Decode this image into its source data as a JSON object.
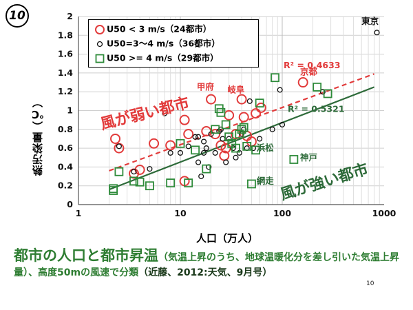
{
  "slide_number": "10",
  "chart_data": {
    "type": "scatter",
    "xscale": "log",
    "xlim": [
      1,
      1000
    ],
    "ylim": [
      0,
      2
    ],
    "xticks": [
      1,
      10,
      100,
      1000
    ],
    "yticks": [
      0,
      0.2,
      0.4,
      0.6,
      0.8,
      1,
      1.2,
      1.4,
      1.6,
      1.8,
      2
    ],
    "xlabel": "人口（万人）",
    "ylabel": "熱汚染量（℃）",
    "grid": true,
    "series": [
      {
        "name": "U50 < 3 m/s（24都市）",
        "marker": "circle-open-large",
        "color": "#e23b3b",
        "points": [
          [
            2.3,
            0.7
          ],
          [
            2.5,
            0.6
          ],
          [
            3.5,
            0.33
          ],
          [
            4,
            0.37
          ],
          [
            5.5,
            0.65
          ],
          [
            8,
            0.63
          ],
          [
            11,
            0.9
          ],
          [
            12,
            0.75
          ],
          [
            11,
            0.25
          ],
          [
            18,
            0.78
          ],
          [
            20,
            1.12
          ],
          [
            22,
            0.75
          ],
          [
            25,
            0.63
          ],
          [
            27,
            0.52
          ],
          [
            28,
            0.6
          ],
          [
            30,
            0.95
          ],
          [
            35,
            0.75
          ],
          [
            40,
            1.12
          ],
          [
            42,
            0.93
          ],
          [
            45,
            0.73
          ],
          [
            50,
            0.67
          ],
          [
            55,
            0.97
          ],
          [
            62,
            1.03
          ],
          [
            160,
            1.3
          ]
        ]
      },
      {
        "name": "U50=3～4 m/s（36都市）",
        "marker": "circle-open-small",
        "color": "#111111",
        "points": [
          [
            2.5,
            0.62
          ],
          [
            3.5,
            0.35
          ],
          [
            5,
            0.38
          ],
          [
            7,
            0.97
          ],
          [
            8,
            0.55
          ],
          [
            10,
            0.55
          ],
          [
            12,
            0.62
          ],
          [
            14,
            0.72
          ],
          [
            15,
            0.72
          ],
          [
            15,
            0.45
          ],
          [
            16,
            0.3
          ],
          [
            17,
            0.67
          ],
          [
            17,
            0.55
          ],
          [
            18,
            0.6
          ],
          [
            19,
            0.4
          ],
          [
            20,
            0.75
          ],
          [
            22,
            0.55
          ],
          [
            24,
            0.78
          ],
          [
            25,
            0.8
          ],
          [
            26,
            0.7
          ],
          [
            28,
            0.45
          ],
          [
            30,
            0.7
          ],
          [
            33,
            0.6
          ],
          [
            35,
            0.5
          ],
          [
            38,
            0.55
          ],
          [
            40,
            0.75
          ],
          [
            42,
            0.8
          ],
          [
            45,
            0.6
          ],
          [
            48,
            1.1
          ],
          [
            52,
            0.6
          ],
          [
            60,
            0.7
          ],
          [
            80,
            0.8
          ],
          [
            95,
            1.22
          ],
          [
            100,
            0.85
          ],
          [
            250,
            1.2
          ],
          [
            850,
            1.83
          ]
        ]
      },
      {
        "name": "U50 >= 4 m/s（29都市）",
        "marker": "square-open",
        "color": "#2e8b3a",
        "points": [
          [
            2.2,
            0.17
          ],
          [
            2.2,
            0.15
          ],
          [
            2.5,
            0.35
          ],
          [
            3.5,
            0.25
          ],
          [
            4,
            0.24
          ],
          [
            5,
            0.2
          ],
          [
            8,
            0.23
          ],
          [
            10,
            0.65
          ],
          [
            12,
            0.23
          ],
          [
            14,
            0.58
          ],
          [
            18,
            0.38
          ],
          [
            22,
            0.8
          ],
          [
            24,
            1.02
          ],
          [
            25,
            0.98
          ],
          [
            28,
            0.85
          ],
          [
            30,
            0.72
          ],
          [
            32,
            0.65
          ],
          [
            35,
            0.6
          ],
          [
            38,
            0.75
          ],
          [
            40,
            0.8
          ],
          [
            42,
            0.82
          ],
          [
            45,
            0.62
          ],
          [
            50,
            0.22
          ],
          [
            55,
            0.58
          ],
          [
            60,
            1.08
          ],
          [
            85,
            1.35
          ],
          [
            130,
            0.48
          ],
          [
            220,
            1.25
          ],
          [
            280,
            1.18
          ]
        ]
      }
    ],
    "trendlines": [
      {
        "color": "#e23b3b",
        "dash": true,
        "from": [
          2,
          0.36
        ],
        "to": [
          800,
          1.39
        ],
        "label": "R² = 0.4633"
      },
      {
        "color": "#2e6b3a",
        "dash": false,
        "from": [
          2,
          0.16
        ],
        "to": [
          800,
          1.25
        ],
        "label": "R² = 0.5321"
      }
    ],
    "annotations": [
      {
        "text": "東京",
        "x": 600,
        "y": 1.92,
        "color": "#111111"
      },
      {
        "text": "京都",
        "x": 150,
        "y": 1.38,
        "color": "#e23b3b"
      },
      {
        "text": "甲府",
        "x": 14.5,
        "y": 1.22,
        "color": "#e23b3b"
      },
      {
        "text": "岐阜",
        "x": 29,
        "y": 1.19,
        "color": "#e23b3b"
      },
      {
        "text": "浜松",
        "x": 56,
        "y": 0.57,
        "color": "#2e6b3a"
      },
      {
        "text": "神戸",
        "x": 150,
        "y": 0.47,
        "color": "#2e6b3a"
      },
      {
        "text": "網走",
        "x": 56,
        "y": 0.22,
        "color": "#2e6b3a"
      }
    ],
    "big_labels": [
      {
        "text": "風が弱い都市",
        "x": 1.7,
        "y": 0.8,
        "color": "#e23b3b",
        "rotate": -14
      },
      {
        "text": "風が強い都市",
        "x": 100,
        "y": 0.05,
        "color": "#2e6b3a",
        "rotate": -17
      }
    ]
  },
  "legend": [
    {
      "label": "U50 < 3 m/s（24都市）",
      "marker": "circle-open-large",
      "color": "#e23b3b"
    },
    {
      "label": "U50=3～4 m/s（36都市）",
      "marker": "circle-open-small",
      "color": "#111111"
    },
    {
      "label": "U50 >= 4 m/s（29都市）",
      "marker": "square-open",
      "color": "#2e8b3a"
    }
  ],
  "caption": {
    "title": "都市の人口と都市昇温",
    "body": "（気温上昇のうち、地球温暖化分を差し引いた気温上昇量）、高度50mの風速で分類",
    "citation": "（近藤、2012:天気、9月号）"
  },
  "page_number": "10"
}
